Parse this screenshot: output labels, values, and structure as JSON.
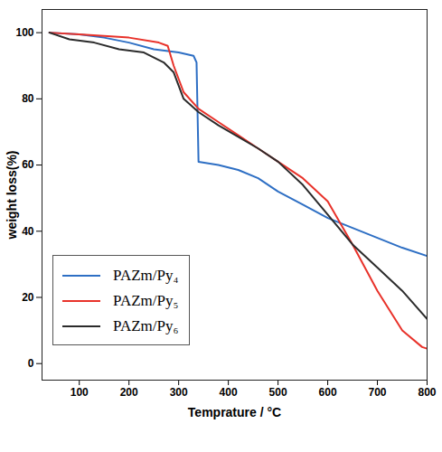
{
  "chart_data": {
    "type": "line",
    "x_label": "Temprature / °C",
    "y_label": "weight loss(%)",
    "xlim": [
      25,
      800
    ],
    "xticks": [
      100,
      200,
      300,
      400,
      500,
      600,
      700,
      800
    ],
    "ylim": [
      -5,
      107
    ],
    "yticks": [
      0,
      20,
      40,
      60,
      80,
      100
    ],
    "grid": false,
    "legend": "lower left",
    "series": [
      {
        "name": "PAZm/Py₄",
        "color": "#2e6fc4",
        "x": [
          40,
          100,
          150,
          200,
          250,
          300,
          330,
          336,
          340,
          380,
          420,
          460,
          500,
          550,
          600,
          650,
          700,
          750,
          800
        ],
        "values": [
          100,
          99.5,
          98.5,
          97,
          95,
          94,
          93,
          91,
          61,
          60,
          58.5,
          56,
          52,
          48,
          44,
          41,
          38,
          35,
          32.5
        ]
      },
      {
        "name": "PAZm/Py₅",
        "color": "#e8322a",
        "x": [
          40,
          100,
          200,
          260,
          278,
          290,
          310,
          340,
          380,
          420,
          460,
          500,
          550,
          600,
          650,
          700,
          750,
          790,
          800
        ],
        "values": [
          100,
          99.5,
          98.5,
          97,
          96,
          90,
          82,
          77,
          73,
          69,
          65,
          61,
          56,
          49,
          36,
          22,
          10,
          5,
          4.5
        ]
      },
      {
        "name": "PAZm/Py₆",
        "color": "#2b2b2b",
        "x": [
          40,
          80,
          130,
          180,
          230,
          270,
          290,
          310,
          340,
          380,
          420,
          460,
          500,
          550,
          600,
          650,
          700,
          750,
          800
        ],
        "values": [
          100,
          98,
          97,
          95,
          94,
          91,
          88,
          80,
          76,
          72,
          68.5,
          65,
          61,
          54,
          45,
          36,
          29,
          22,
          13.5
        ]
      }
    ]
  }
}
